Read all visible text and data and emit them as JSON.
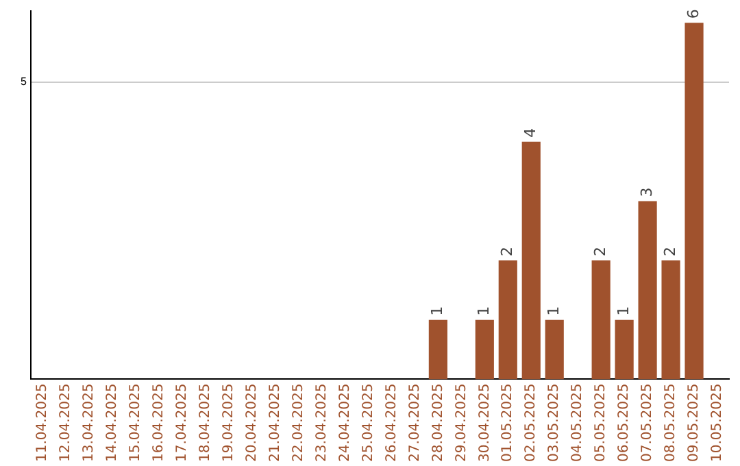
{
  "chart_data": {
    "type": "bar",
    "categories": [
      "11.04.2025",
      "12.04.2025",
      "13.04.2025",
      "14.04.2025",
      "15.04.2025",
      "16.04.2025",
      "17.04.2025",
      "18.04.2025",
      "19.04.2025",
      "20.04.2025",
      "21.04.2025",
      "22.04.2025",
      "23.04.2025",
      "24.04.2025",
      "25.04.2025",
      "26.04.2025",
      "27.04.2025",
      "28.04.2025",
      "29.04.2025",
      "30.04.2025",
      "01.05.2025",
      "02.05.2025",
      "03.05.2025",
      "04.05.2025",
      "05.05.2025",
      "06.05.2025",
      "07.05.2025",
      "08.05.2025",
      "09.05.2025",
      "10.05.2025"
    ],
    "values": [
      null,
      null,
      null,
      null,
      null,
      null,
      null,
      null,
      null,
      null,
      null,
      null,
      null,
      null,
      null,
      null,
      null,
      1,
      null,
      1,
      2,
      4,
      1,
      null,
      2,
      1,
      3,
      2,
      6,
      null
    ],
    "data_labels": true,
    "color": "#a0522d",
    "ylim": [
      0,
      6.2
    ],
    "yticks": [
      5
    ],
    "grid": "y"
  }
}
